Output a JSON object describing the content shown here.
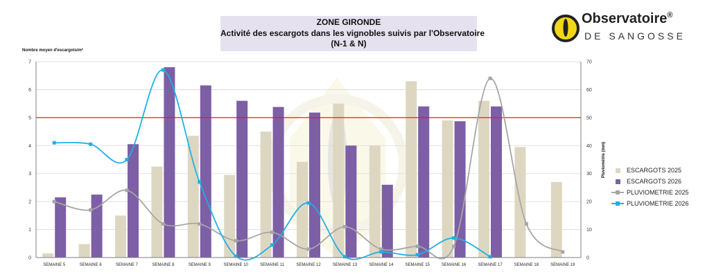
{
  "title": {
    "line1": "ZONE GIRONDE",
    "line2": "Activité des escargots dans les vignobles suivis par l'Observatoire",
    "line3": "(N-1 & N)"
  },
  "logo": {
    "name": "Observatoire",
    "mark": "®",
    "sub": "DE SANGOSSE"
  },
  "colors": {
    "bar2025": "#ddd7c2",
    "bar2026": "#7d5fa5",
    "line2025": "#a6a6a6",
    "line2026": "#1fb0e6",
    "threshold": "#e21b1b",
    "grid": "#d9d9d9"
  },
  "chart_data": {
    "type": "bar",
    "ylabel": "Nombre moyen d'escargots/m²",
    "y2label": "Pluviométrie (mm)",
    "ylim": [
      0,
      7
    ],
    "y2lim": [
      0,
      70
    ],
    "yticks": [
      "0",
      "1",
      "2",
      "3",
      "4",
      "5",
      "6",
      "7"
    ],
    "y2ticks": [
      "0",
      "10",
      "20",
      "30",
      "40",
      "50",
      "60",
      "70"
    ],
    "threshold": 5,
    "categories": [
      "SEMAINE 5",
      "SEMAINE 6",
      "SEMAINE 7",
      "SEMAINE 8",
      "SEMAINE 9",
      "SEMAINE 10",
      "SEMAINE 11",
      "SEMAINE 12",
      "SEMAINE 13",
      "SEMAINE 14",
      "SEMAINE 15",
      "SEMAINE 16",
      "SEMAINE 17",
      "SEMAINE 18",
      "SEMAINE 19"
    ],
    "series": [
      {
        "name": "ESCARGOTS 2025",
        "kind": "bar",
        "axis": "left",
        "values": [
          0.15,
          0.48,
          1.5,
          3.25,
          4.35,
          2.95,
          4.5,
          3.42,
          5.5,
          4.0,
          6.3,
          4.9,
          5.6,
          3.95,
          2.7
        ]
      },
      {
        "name": "ESCARGOTS  2026",
        "kind": "bar",
        "axis": "left",
        "values": [
          2.15,
          2.25,
          4.05,
          6.8,
          6.15,
          5.6,
          5.38,
          5.18,
          4.0,
          2.6,
          5.4,
          4.87,
          5.4,
          null,
          null
        ]
      },
      {
        "name": "PLUVIOMETRIE 2025",
        "kind": "line",
        "axis": "right",
        "values": [
          20,
          17,
          24,
          12,
          12,
          6,
          9,
          3,
          11,
          3,
          4,
          4,
          64,
          12,
          2
        ]
      },
      {
        "name": "PLUVIOMETRIE 2026",
        "kind": "line",
        "axis": "right",
        "values": [
          41,
          40.5,
          35,
          67,
          27,
          0.5,
          4.5,
          19.5,
          0.3,
          2,
          1,
          7,
          0.3,
          null,
          null
        ]
      }
    ]
  }
}
